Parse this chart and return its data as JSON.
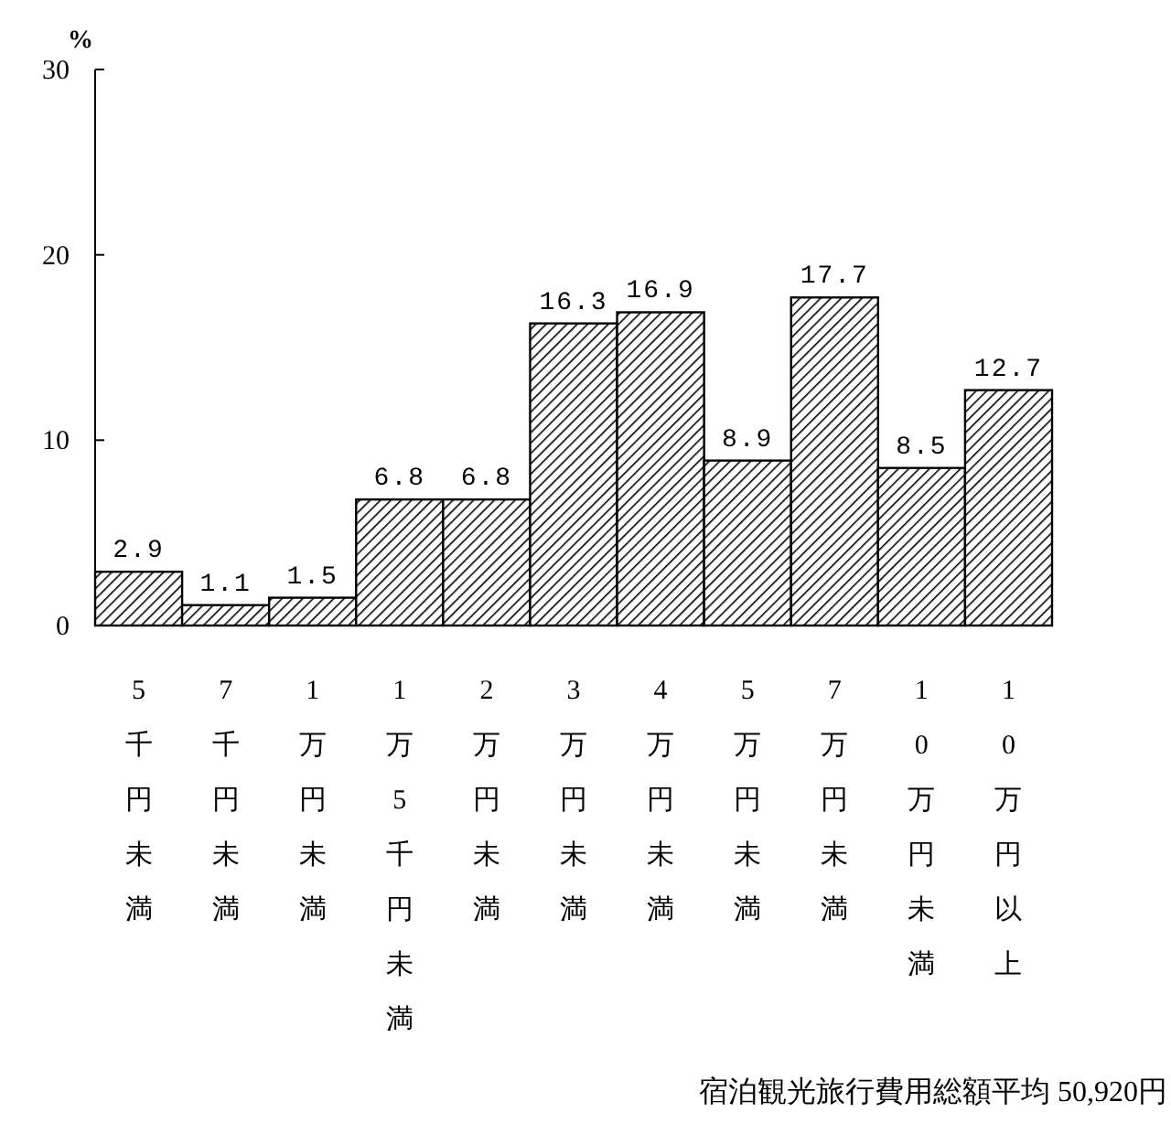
{
  "chart_data": {
    "type": "bar",
    "ylabel": "%",
    "categories": [
      "5千円未満",
      "7千円未満",
      "1万円未満",
      "1万5千円未満",
      "2万円未満",
      "3万円未満",
      "4万円未満",
      "5万円未満",
      "7万円未満",
      "10万円未満",
      "10万円以上"
    ],
    "values": [
      2.9,
      1.1,
      1.5,
      6.8,
      6.8,
      16.3,
      16.9,
      8.9,
      17.7,
      8.5,
      12.7
    ],
    "color": "#000000",
    "ylim": [
      0,
      30
    ],
    "yticks": [
      0,
      10,
      20,
      30
    ],
    "data_labels": true,
    "annotations": [
      "宿泊観光旅行費用総額平均 50,920円"
    ]
  }
}
